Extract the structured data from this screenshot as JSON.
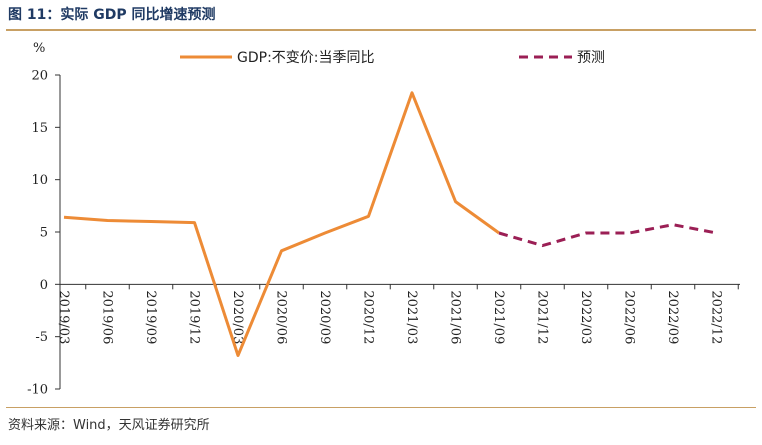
{
  "title": "图 11：实际 GDP 同比增速预测",
  "source": "资料来源：Wind，天风证券研究所",
  "chart_data": {
    "type": "line",
    "categories": [
      "2019/03",
      "2019/06",
      "2019/09",
      "2019/12",
      "2020/03",
      "2020/06",
      "2020/09",
      "2020/12",
      "2021/03",
      "2021/06",
      "2021/09",
      "2021/12",
      "2022/03",
      "2022/06",
      "2022/09",
      "2022/12"
    ],
    "ylabel": "%",
    "ylim": [
      -10,
      20
    ],
    "yticks": [
      -10,
      -5,
      0,
      5,
      10,
      15,
      20
    ],
    "grid": false,
    "legend_position": "top",
    "series": [
      {
        "name": "GDP:不变价:当季同比",
        "color": "#ed8b36",
        "style": "solid",
        "values": [
          6.4,
          6.1,
          6.0,
          5.9,
          -6.8,
          3.2,
          4.9,
          6.5,
          18.3,
          7.9,
          4.9,
          null,
          null,
          null,
          null,
          null
        ]
      },
      {
        "name": "预测",
        "color": "#9b1f55",
        "style": "dashed",
        "values": [
          null,
          null,
          null,
          null,
          null,
          null,
          null,
          null,
          null,
          null,
          4.9,
          3.7,
          4.9,
          4.9,
          5.7,
          4.9
        ]
      }
    ]
  }
}
